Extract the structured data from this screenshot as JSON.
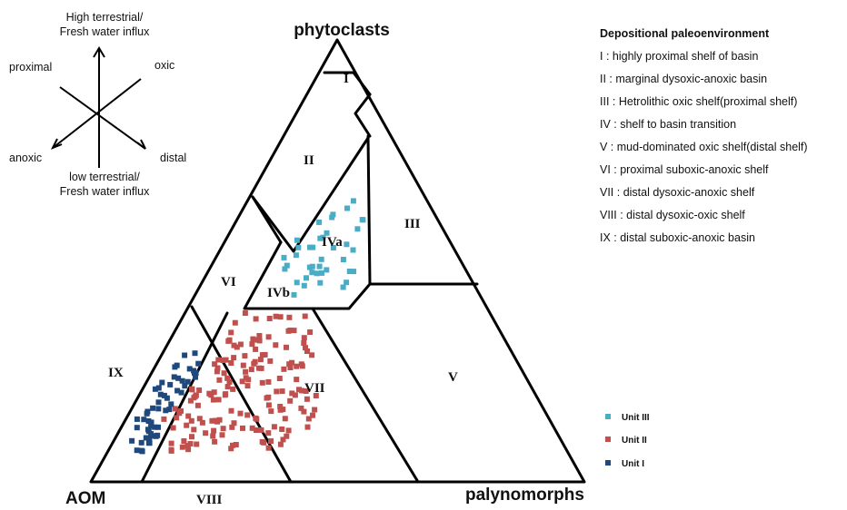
{
  "vertices": {
    "top": "phytoclasts",
    "left": "AOM",
    "right": "palynomorphs"
  },
  "zones": {
    "I": "I",
    "II": "II",
    "III": "III",
    "IVa": "IVa",
    "IVb": "IVb",
    "V": "V",
    "VI": "VI",
    "VII": "VII",
    "VIII": "VIII",
    "IX": "IX"
  },
  "axes": {
    "top_line1": "High terrestrial/",
    "top_line2": "Fresh water influx",
    "bottom_line1": "low terrestrial/",
    "bottom_line2": "Fresh water influx",
    "upper_left": "proximal",
    "upper_right": "oxic",
    "lower_left": "anoxic",
    "lower_right": "distal"
  },
  "legend": {
    "title": "Depositional paleoenvironment",
    "items": [
      "I : highly proximal shelf of basin",
      "II : marginal dysoxic-anoxic basin",
      "III : Hetrolithic oxic shelf(proximal shelf)",
      "IV : shelf to basin transition",
      "V : mud-dominated oxic shelf(distal shelf)",
      "VI : proximal suboxic-anoxic shelf",
      "VII : distal dysoxic-anoxic shelf",
      "VIII : distal dysoxic-oxic shelf",
      "IX : distal suboxic-anoxic basin"
    ]
  },
  "units": [
    {
      "label": "Unit III",
      "color": "#4bacc6"
    },
    {
      "label": "Unit II",
      "color": "#c0504d"
    },
    {
      "label": "Unit I",
      "color": "#1f497d"
    }
  ],
  "samples_plotted": {
    "Unit III": 40,
    "Unit II": 170,
    "Unit I": 55
  }
}
